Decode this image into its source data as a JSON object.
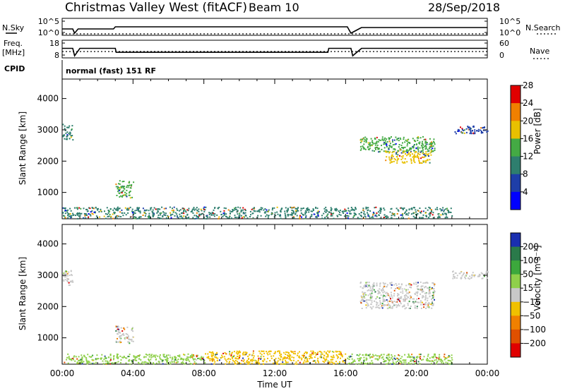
{
  "header": {
    "title": "Christmas Valley West (fitACF)",
    "beam": "Beam 10",
    "date": "28/Sep/2018"
  },
  "left_labels": {
    "nsky": "N.Sky",
    "freq": "Freq.",
    "mhz": "[MHz]",
    "cpid": "CPID"
  },
  "right_labels": {
    "nsearch": "N.Search",
    "nave": "Nave"
  },
  "cpid_text": "normal (fast) 151 RF",
  "chart_data": [
    {
      "type": "line",
      "panel": "noise",
      "yticks_left": [
        "10^5",
        "10^0"
      ],
      "yticks_right": [
        "10^5",
        "10^0"
      ],
      "series": [
        {
          "name": "N.Sky",
          "points": [
            [
              0.0,
              0.4
            ],
            [
              0.6,
              0.4
            ],
            [
              0.7,
              0.1
            ],
            [
              0.9,
              0.4
            ],
            [
              2.9,
              0.4
            ],
            [
              3.0,
              0.55
            ],
            [
              16.1,
              0.55
            ],
            [
              16.3,
              0.1
            ],
            [
              16.9,
              0.5
            ],
            [
              24.0,
              0.5
            ]
          ]
        },
        {
          "name": "N.Search",
          "points": [
            [
              0.0,
              0.05
            ],
            [
              24.0,
              0.05
            ]
          ]
        }
      ]
    },
    {
      "type": "line",
      "panel": "frequency",
      "yticks_left": [
        "18",
        "8"
      ],
      "yticks_right": [
        "60",
        "0"
      ],
      "series": [
        {
          "name": "Freq.",
          "points": [
            [
              0.0,
              13.5
            ],
            [
              0.6,
              13.5
            ],
            [
              0.7,
              8.5
            ],
            [
              1.0,
              13.5
            ],
            [
              3.0,
              13.5
            ],
            [
              3.05,
              10.8
            ],
            [
              15.0,
              10.8
            ],
            [
              15.05,
              13.5
            ],
            [
              16.3,
              13.5
            ],
            [
              16.4,
              8.5
            ],
            [
              16.9,
              13.5
            ],
            [
              24.0,
              13.5
            ]
          ]
        },
        {
          "name": "Nave",
          "points": [
            [
              0.0,
              20
            ],
            [
              24.0,
              20
            ]
          ]
        }
      ]
    },
    {
      "type": "heatmap",
      "panel": "power",
      "xlabel": "",
      "ylabel": "Slant Range [km]",
      "yticks": [
        1000,
        2000,
        3000,
        4000
      ],
      "ylim": [
        180,
        4600
      ],
      "colorbar": {
        "label": "Power [dB]",
        "ticks": [
          "4",
          "8",
          "12",
          "16",
          "20",
          "24",
          "28"
        ],
        "colors": [
          "#0000ff",
          "#1e3ea8",
          "#2e7e6e",
          "#44aa44",
          "#e8c000",
          "#f08000",
          "#e00000"
        ]
      },
      "regions": [
        {
          "t": [
            0.0,
            0.6
          ],
          "r": [
            2700,
            3200
          ],
          "color": "#2e7e6e"
        },
        {
          "t": [
            3.0,
            4.0
          ],
          "r": [
            850,
            1400
          ],
          "color": "#44aa44"
        },
        {
          "t": [
            0.0,
            22.0
          ],
          "r": [
            180,
            550
          ],
          "color": "#2e7e6e"
        },
        {
          "t": [
            16.8,
            21.0
          ],
          "r": [
            2300,
            2800
          ],
          "color": "#44aa44"
        },
        {
          "t": [
            18.2,
            20.8
          ],
          "r": [
            1950,
            2350
          ],
          "color": "#e8c000"
        },
        {
          "t": [
            22.0,
            24.0
          ],
          "r": [
            2900,
            3150
          ],
          "color": "#1e3ea8"
        }
      ]
    },
    {
      "type": "heatmap",
      "panel": "velocity",
      "xlabel": "Time UT",
      "ylabel": "Slant Range [km]",
      "xticks": [
        "00:00",
        "04:00",
        "08:00",
        "12:00",
        "16:00",
        "20:00",
        "00:00"
      ],
      "yticks": [
        1000,
        2000,
        3000,
        4000
      ],
      "ylim": [
        180,
        4600
      ],
      "colorbar": {
        "label": "Velocity [m s⁻¹]",
        "ticks": [
          "200",
          "100",
          "50",
          "15",
          "−15",
          "−50",
          "−100",
          "−200"
        ],
        "colors": [
          "#1a2fb0",
          "#2a7a4a",
          "#3ca83c",
          "#8fd04a",
          "#c8c8c8",
          "#f0c000",
          "#f08000",
          "#e05000",
          "#e00000"
        ]
      },
      "regions": [
        {
          "t": [
            0.0,
            0.6
          ],
          "r": [
            2700,
            3200
          ],
          "color": "#c8c8c8"
        },
        {
          "t": [
            3.0,
            4.0
          ],
          "r": [
            850,
            1400
          ],
          "color": "#c8c8c8"
        },
        {
          "t": [
            0.0,
            8.0
          ],
          "r": [
            180,
            500
          ],
          "color": "#8fd04a"
        },
        {
          "t": [
            8.0,
            16.0
          ],
          "r": [
            180,
            600
          ],
          "color": "#f0c000"
        },
        {
          "t": [
            16.0,
            22.0
          ],
          "r": [
            180,
            500
          ],
          "color": "#8fd04a"
        },
        {
          "t": [
            16.8,
            21.0
          ],
          "r": [
            1950,
            2800
          ],
          "color": "#c8c8c8"
        },
        {
          "t": [
            22.0,
            24.0
          ],
          "r": [
            2900,
            3150
          ],
          "color": "#c8c8c8"
        }
      ]
    }
  ]
}
